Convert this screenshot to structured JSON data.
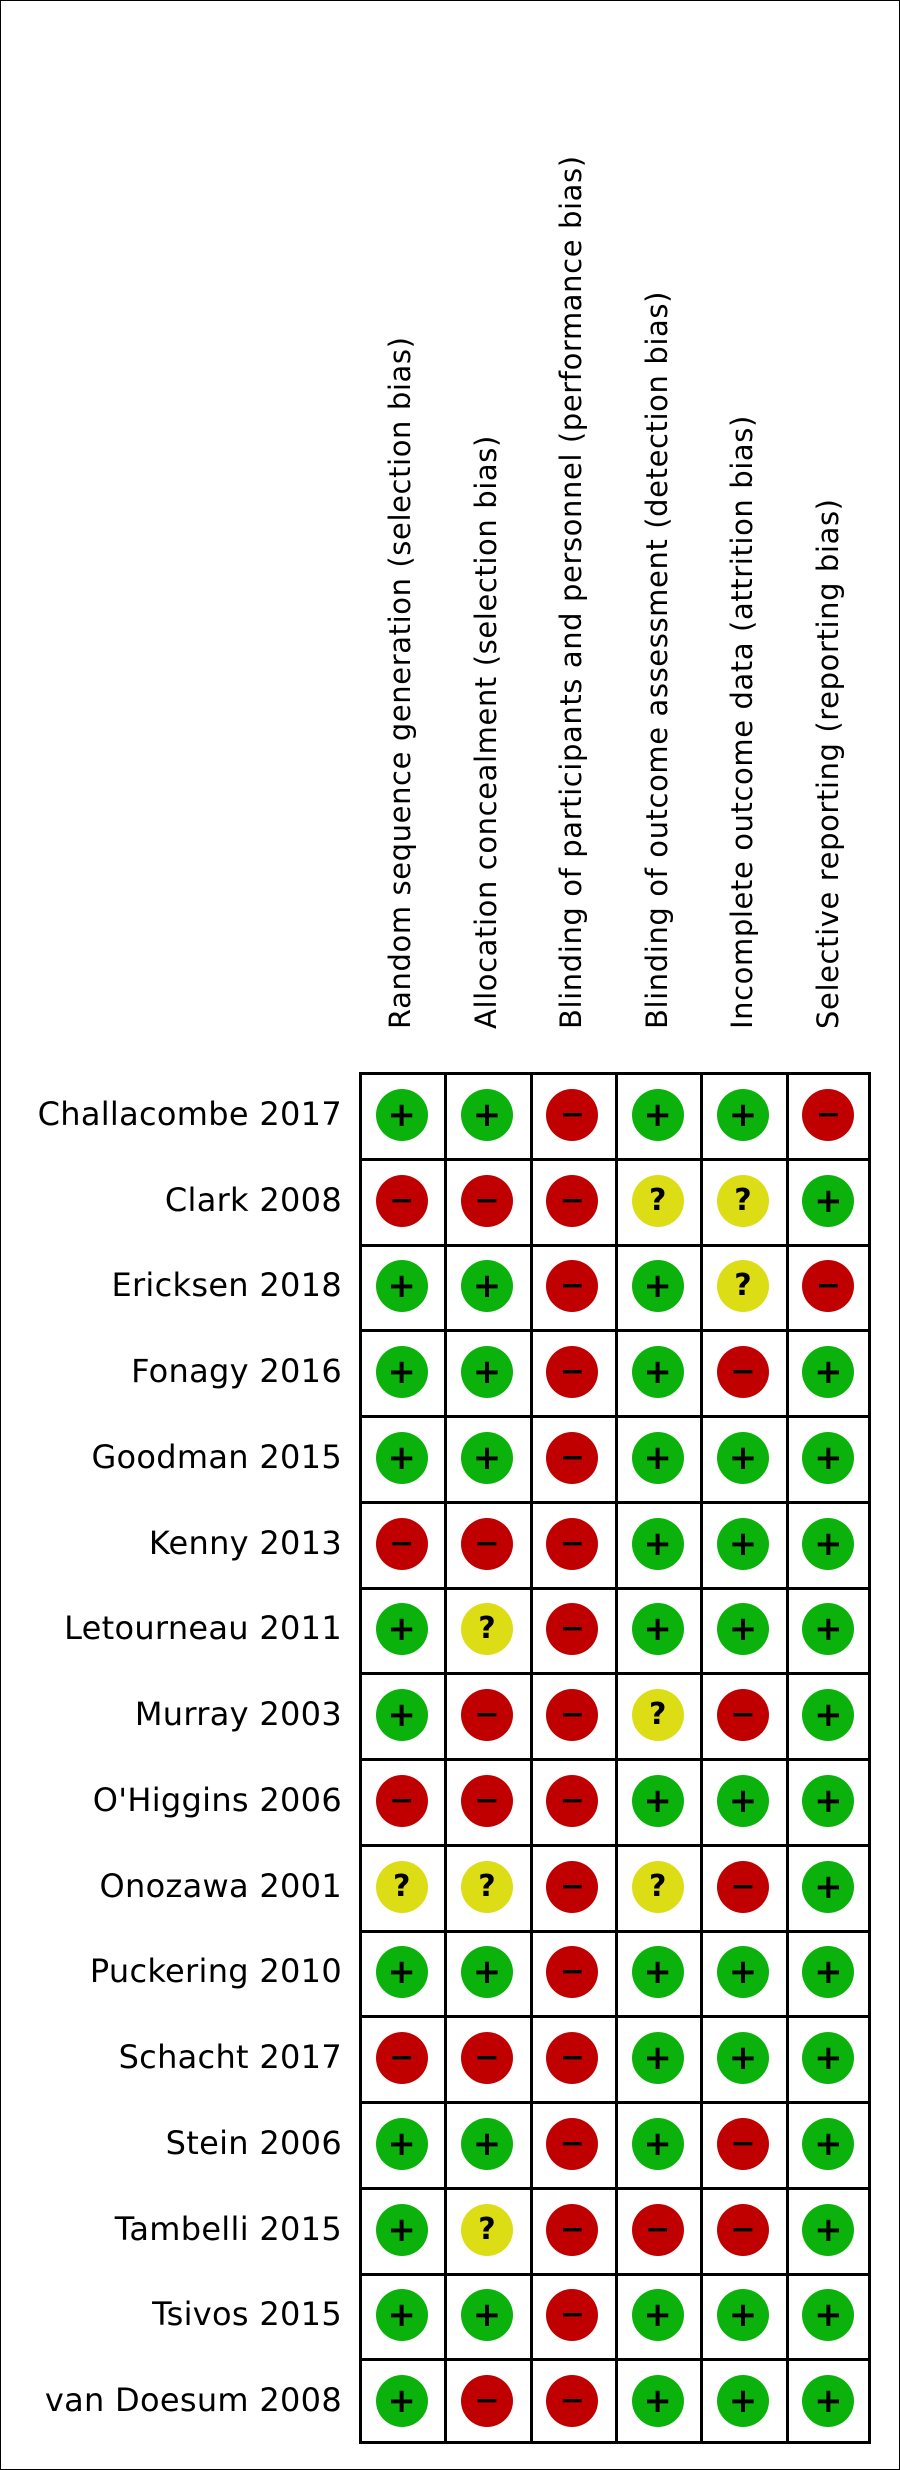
{
  "columns": [
    "Random sequence generation (selection bias)",
    "Allocation concealment (selection bias)",
    "Blinding of participants and personnel (performance bias)",
    "Blinding of outcome assessment (detection bias)",
    "Incomplete outcome data (attrition bias)",
    "Selective reporting (reporting bias)"
  ],
  "studies": [
    {
      "label": "Challacombe 2017",
      "ratings": [
        "low",
        "low",
        "high",
        "low",
        "low",
        "high"
      ]
    },
    {
      "label": "Clark 2008",
      "ratings": [
        "high",
        "high",
        "high",
        "unclear",
        "unclear",
        "low"
      ]
    },
    {
      "label": "Ericksen 2018",
      "ratings": [
        "low",
        "low",
        "high",
        "low",
        "unclear",
        "high"
      ]
    },
    {
      "label": "Fonagy 2016",
      "ratings": [
        "low",
        "low",
        "high",
        "low",
        "high",
        "low"
      ]
    },
    {
      "label": "Goodman 2015",
      "ratings": [
        "low",
        "low",
        "high",
        "low",
        "low",
        "low"
      ]
    },
    {
      "label": "Kenny 2013",
      "ratings": [
        "high",
        "high",
        "high",
        "low",
        "low",
        "low"
      ]
    },
    {
      "label": "Letourneau 2011",
      "ratings": [
        "low",
        "unclear",
        "high",
        "low",
        "low",
        "low"
      ]
    },
    {
      "label": "Murray 2003",
      "ratings": [
        "low",
        "high",
        "high",
        "unclear",
        "high",
        "low"
      ]
    },
    {
      "label": "O'Higgins 2006",
      "ratings": [
        "high",
        "high",
        "high",
        "low",
        "low",
        "low"
      ]
    },
    {
      "label": "Onozawa 2001",
      "ratings": [
        "unclear",
        "unclear",
        "high",
        "unclear",
        "high",
        "low"
      ]
    },
    {
      "label": "Puckering 2010",
      "ratings": [
        "low",
        "low",
        "high",
        "low",
        "low",
        "low"
      ]
    },
    {
      "label": "Schacht 2017",
      "ratings": [
        "high",
        "high",
        "high",
        "low",
        "low",
        "low"
      ]
    },
    {
      "label": "Stein 2006",
      "ratings": [
        "low",
        "low",
        "high",
        "low",
        "high",
        "low"
      ]
    },
    {
      "label": "Tambelli 2015",
      "ratings": [
        "low",
        "unclear",
        "high",
        "high",
        "high",
        "low"
      ]
    },
    {
      "label": "Tsivos 2015",
      "ratings": [
        "low",
        "low",
        "high",
        "low",
        "low",
        "low"
      ]
    },
    {
      "label": "van Doesum 2008",
      "ratings": [
        "low",
        "high",
        "high",
        "low",
        "low",
        "low"
      ]
    }
  ],
  "symbols": {
    "low": {
      "glyph": "+",
      "color": "#0bb20b"
    },
    "high": {
      "glyph": "−",
      "color": "#c00000"
    },
    "unclear": {
      "glyph": "?",
      "color": "#dddd15"
    }
  }
}
